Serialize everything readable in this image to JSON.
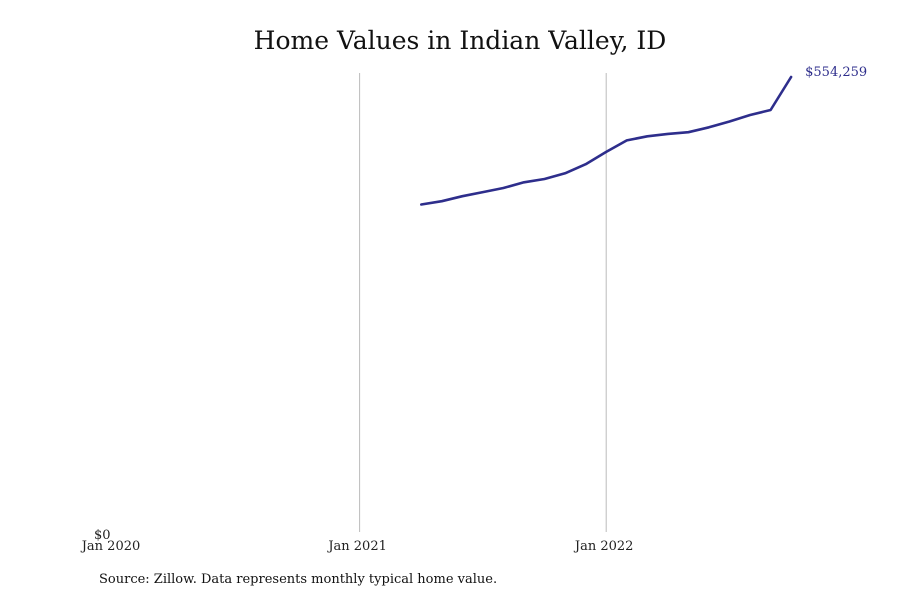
{
  "chart_data": {
    "type": "line",
    "title": "Home Values in Indian Valley, ID",
    "xlabel": "",
    "ylabel": "",
    "ylim": [
      0,
      554259
    ],
    "grid": "vertical",
    "legend": "none",
    "line_color": "#2e2e8c",
    "grid_color": "#bbbbbb",
    "x_ticks": [
      {
        "date": "2020-01",
        "label": "Jan 2020"
      },
      {
        "date": "2021-01",
        "label": "Jan 2021"
      },
      {
        "date": "2022-01",
        "label": "Jan 2022"
      }
    ],
    "y_ticks": [
      {
        "value": 0,
        "label": "$0"
      }
    ],
    "end_label": "$554,259",
    "series": [
      {
        "x": [
          "2021-04",
          "2021-05",
          "2021-06",
          "2021-07",
          "2021-08",
          "2021-09",
          "2021-10",
          "2021-11",
          "2021-12",
          "2022-01",
          "2022-02",
          "2022-03",
          "2022-04",
          "2022-05",
          "2022-06",
          "2022-07",
          "2022-08",
          "2022-09",
          "2022-10"
        ],
        "values": [
          399000,
          403000,
          409000,
          414000,
          419000,
          426000,
          430000,
          437000,
          448000,
          463000,
          477000,
          482000,
          485000,
          487000,
          493000,
          500000,
          508000,
          514000,
          554259
        ]
      }
    ]
  },
  "source": "Source: Zillow. Data represents monthly typical home value."
}
